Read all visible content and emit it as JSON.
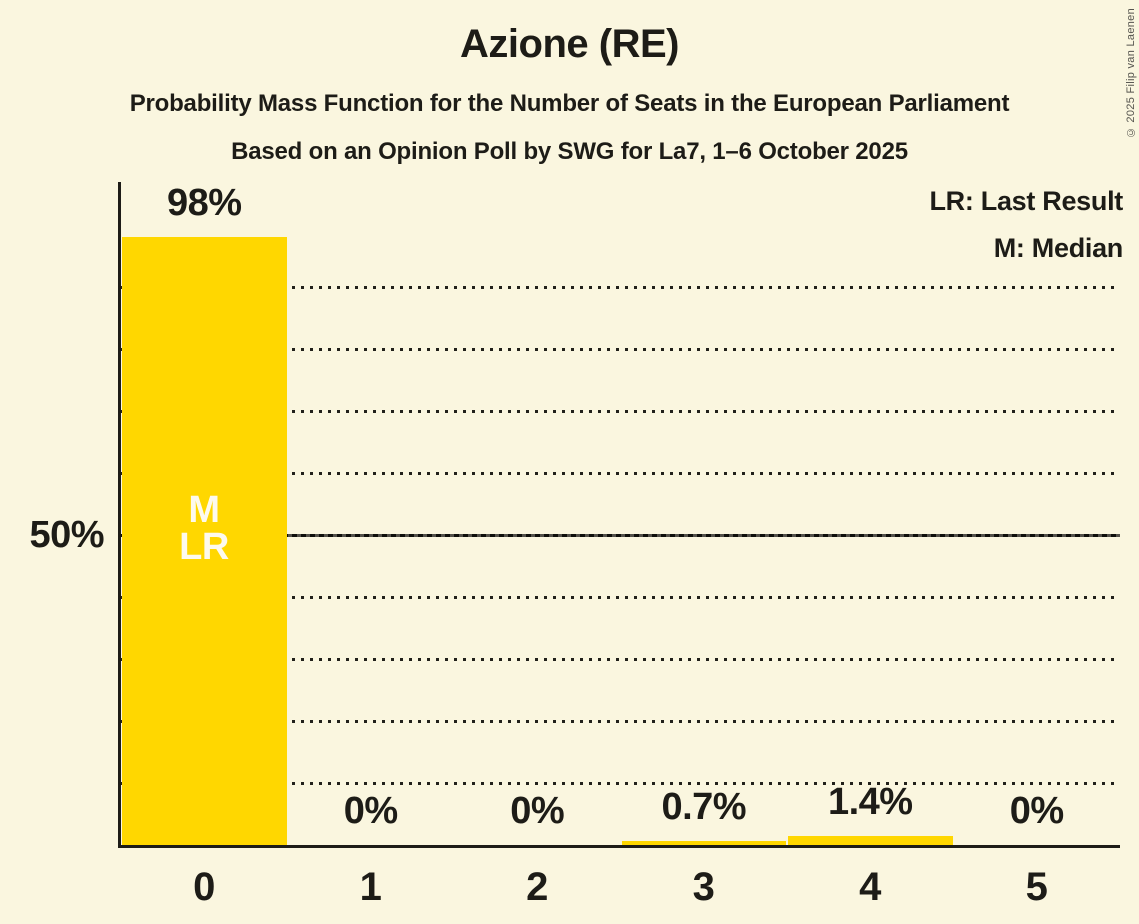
{
  "header": {
    "title": "Azione (RE)",
    "subtitle1": "Probability Mass Function for the Number of Seats in the European Parliament",
    "subtitle2": "Based on an Opinion Poll by SWG for La7, 1–6 October 2025"
  },
  "legend": {
    "last_result": "LR: Last Result",
    "median": "M: Median"
  },
  "copyright": "© 2025 Filip van Laenen",
  "colors": {
    "background": "#FAF6DF",
    "bar": "#FFD700",
    "text": "#1D1C17",
    "bar_annotation_text": "#FDFAEE"
  },
  "chart_data": {
    "type": "bar",
    "title": "Azione (RE)",
    "subtitle": "Probability Mass Function for the Number of Seats in the European Parliament",
    "source_line": "Based on an Opinion Poll by SWG for La7, 1–6 October 2025",
    "categories": [
      "0",
      "1",
      "2",
      "3",
      "4",
      "5"
    ],
    "values": [
      98,
      0,
      0,
      0.7,
      1.4,
      0
    ],
    "bar_labels": [
      "98%",
      "0%",
      "0%",
      "0.7%",
      "1.4%",
      "0%"
    ],
    "xlabel": "",
    "ylabel": "",
    "ylim": [
      0,
      100
    ],
    "y_tick": {
      "label": "50%",
      "value": 50
    },
    "gridlines_pct": [
      10,
      20,
      30,
      40,
      50,
      60,
      70,
      80,
      90
    ],
    "solid_gridline_pct": 50,
    "grid": "horizontal-dotted",
    "legend_position": "top-right",
    "legend_entries": [
      "LR: Last Result",
      "M: Median"
    ],
    "annotations": [
      {
        "category_index": 0,
        "lines": [
          "M",
          "LR"
        ],
        "meaning": [
          "Median",
          "Last Result"
        ]
      }
    ]
  }
}
